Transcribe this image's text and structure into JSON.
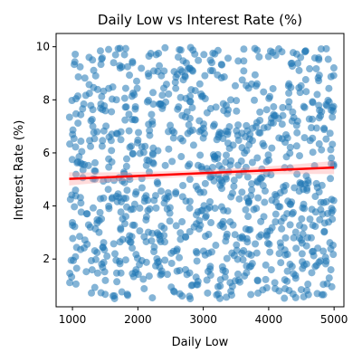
{
  "chart_data": {
    "type": "scatter",
    "title": "Daily Low vs Interest Rate (%)",
    "xlabel": "Daily Low",
    "ylabel": "Interest Rate (%)",
    "xlim": [
      750,
      5150
    ],
    "ylim": [
      0.2,
      10.5
    ],
    "xticks": [
      1000,
      2000,
      3000,
      4000,
      5000
    ],
    "yticks": [
      2,
      4,
      6,
      8,
      10
    ],
    "xtick_labels": [
      "1000",
      "2000",
      "3000",
      "4000",
      "5000"
    ],
    "ytick_labels": [
      "2",
      "4",
      "6",
      "8",
      "10"
    ],
    "grid": false,
    "legend": "none",
    "n_points": 1000,
    "x_range": [
      950,
      5000
    ],
    "y_range": [
      0.5,
      10.0
    ],
    "point_color": "#1f77b4",
    "point_alpha": 0.55,
    "trend_line": {
      "x": [
        950,
        5000
      ],
      "y": [
        5.02,
        5.45
      ],
      "color": "#ff0000"
    },
    "confidence_band": {
      "color": "#ff9999",
      "alpha": 0.35
    }
  }
}
